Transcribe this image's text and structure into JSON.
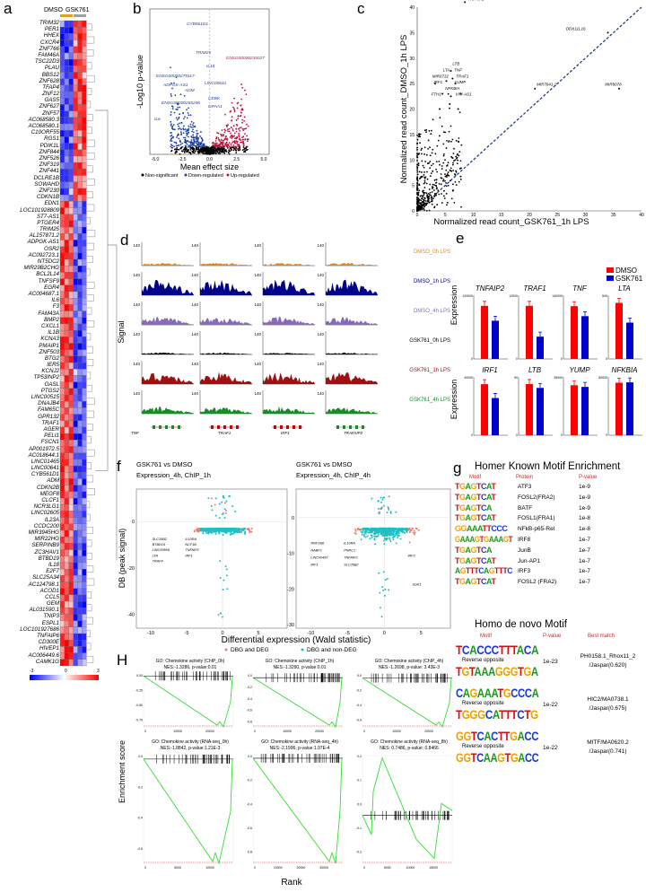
{
  "panel_labels": {
    "a": "a",
    "b": "b",
    "c": "c",
    "d": "d",
    "e": "e",
    "f": "f",
    "g": "g",
    "h": "H"
  },
  "heatmap": {
    "groups": [
      "DMSO",
      "GSK761"
    ],
    "group_colors": [
      "#e0a020",
      "#a0a0a0"
    ],
    "genes_up": [
      "TRIM32",
      "PER1",
      "HHEX",
      "CXCR4",
      "ZNF766",
      "FAM46A",
      "TSC22D3",
      "PLAU",
      "BBS12",
      "ZNF628",
      "TFAP4",
      "ZNF12",
      "GAS5",
      "ZNF627",
      "ZNF57",
      "AC068580.3",
      "AC068580.1",
      "C10ORF55",
      "RGS1",
      "PDIK1L",
      "ZNF844",
      "ZNF526",
      "ZNF319",
      "ZNF441",
      "DCLRE1B",
      "SOWAHD",
      "ZNF230",
      "CDKN1B"
    ],
    "genes_down": [
      "EDN1",
      "LOC101928809",
      "ST7-AS1",
      "PTGER4",
      "TRIM25",
      "AL157871.2",
      "ADPGK-AS1",
      "OSR2",
      "AC092723.1",
      "NT5DC2",
      "MIR29B2CHG",
      "BCL2L14",
      "TNFSF9",
      "EGR4",
      "AC004687.1",
      "IL6",
      "F3",
      "FAM43A",
      "BMP2",
      "CXCL1",
      "IL1B",
      "KCNA3",
      "PMAIP1",
      "ZNF503",
      "BTG2",
      "IER5",
      "KCNJ2",
      "TP53INP2",
      "OASL",
      "PTGS2",
      "LINC00515",
      "DNAJB4",
      "FAM65C",
      "GPR132",
      "TRAF1",
      "AGER",
      "PELI1",
      "FSCN1",
      "AP001972.5",
      "AC018644.1",
      "LINC01465",
      "LINC00641",
      "CYB561D1",
      "ADM",
      "CDKN2B",
      "MEGF8",
      "CLCF1",
      "NCR3LG1",
      "LINC02605",
      "IL23A",
      "CCDC200",
      "MIR3945HG",
      "MIR22HG",
      "SERPINB9",
      "ZC3HAV1",
      "BTBD19",
      "IL18",
      "E2F7",
      "SLC25A34",
      "AC124798.1",
      "ACOD1",
      "CCL5",
      "GEM",
      "AL031590.1",
      "TNIP3",
      "ESPL1",
      "LOC101927686",
      "TNFAIP6",
      "CD300E",
      "HIVEP1",
      "AC006449.6",
      "CAMK1G"
    ],
    "scale": {
      "min": "-3",
      "mid": "0",
      "max": "3",
      "colors": [
        "#0000ff",
        "#ffffff",
        "#ff0000"
      ]
    }
  },
  "volcano": {
    "ylabel": "-Log10 p-value",
    "xlabel": "Mean effect size",
    "xticks": [
      "-5.0",
      "-2.5",
      "0.0",
      "2.5",
      "5.0"
    ],
    "legend": [
      {
        "label": "Non-significant",
        "color": "#000000"
      },
      {
        "label": "Down-regulated",
        "color": "#1f3f9f"
      },
      {
        "label": "Up-regulated",
        "color": "#c0143c"
      }
    ],
    "labels_down": [
      "CYB561D1",
      "TRIM25",
      "IL18",
      "ENSG00000279117-",
      "ADPGK-AS1",
      "ADM",
      "LINC00641",
      "ENSG00000265206",
      "CEBK",
      "GPAA1",
      "IL6"
    ],
    "labels_up": [
      "ENSG00000235027"
    ]
  },
  "scatter_c": {
    "ylabel": "Normalized read count_DMSO_1h LPS",
    "xlabel": "Normalized read count_GSK761_1h LPS",
    "xticks": [
      "0",
      "5",
      "10",
      "15",
      "20",
      "25",
      "30",
      "35",
      "40"
    ],
    "yticks": [
      "0",
      "5",
      "10",
      "15",
      "20",
      "25",
      "30",
      "35",
      "40"
    ],
    "labels": [
      "TNFAIP2",
      "DDX11L16",
      "LTB",
      "TNF",
      "LTA",
      "MIR6732",
      "TRAF1",
      "IRF1",
      "YUMP",
      "NFKBIA",
      "FTH1",
      "VIM-AS1",
      "MIR7641-2",
      "MIR8078"
    ]
  },
  "tracks": {
    "ylabel": "Signal",
    "scale": "140",
    "rows": [
      {
        "label": "DMSO_0h LPS",
        "color": "#e08a1e"
      },
      {
        "label": "DMSO_1h LPS",
        "color": "#00008b"
      },
      {
        "label": "DMSO_4h LPS",
        "color": "#8a6ab8"
      },
      {
        "label": "GSK761_0h LPS",
        "color": "#000000"
      },
      {
        "label": "GSK761_1h LPS",
        "color": "#a01010"
      },
      {
        "label": "GSK761_4h LPS",
        "color": "#1a8a2a"
      }
    ],
    "genes": [
      "TNF",
      "TRAF1",
      "IRF1",
      "TRAFAIP2"
    ]
  },
  "bars": {
    "ylabel": "Expression",
    "legend": [
      {
        "label": "DMSO",
        "color": "#ff0000"
      },
      {
        "label": "GSK761",
        "color": "#0000cc"
      }
    ],
    "genes": [
      {
        "name": "TNFAIP2",
        "max": "120000",
        "dmso": 100000,
        "gsk": 72000,
        "ymax": 120000
      },
      {
        "name": "TRAF1",
        "max": "12000",
        "dmso": 10000,
        "gsk": 4200,
        "ymax": 12000
      },
      {
        "name": "TNF",
        "max": "140000",
        "dmso": 116000,
        "gsk": 94000,
        "ymax": 140000
      },
      {
        "name": "LTA",
        "max": "500",
        "dmso": 440,
        "gsk": 285,
        "ymax": 500
      },
      {
        "name": "IRF1",
        "max": "40000",
        "dmso": 35000,
        "gsk": 25500,
        "ymax": 40000
      },
      {
        "name": "LTB",
        "max": "90",
        "dmso": 79,
        "gsk": 73,
        "ymax": 90
      },
      {
        "name": "YUMP",
        "max": "35000",
        "dmso": 30000,
        "gsk": 29000,
        "ymax": 35000
      },
      {
        "name": "NFKBIA",
        "max": "80000",
        "dmso": 72000,
        "gsk": 72500,
        "ymax": 80000
      }
    ]
  },
  "diffbind": {
    "ylabel": "DB (peak signal)",
    "xlabel": "Differential expression (Wald statistic)",
    "plots": [
      {
        "title1": "GSK761 vs DMSO",
        "title2": "Expression_4h, ChIP_1h",
        "yticks": [
          "0",
          "-20",
          "-40"
        ],
        "xticks": [
          "-10",
          "-5",
          "0",
          "5"
        ],
        "labels": [
          "SLC35B2",
          "IL10RA",
          "BTBD19",
          "NCF1B",
          "LINC00869",
          "TNFAIP2",
          "LTA",
          "IRF1",
          "TRAF4"
        ]
      },
      {
        "title1": "GSK761 vs DMSO",
        "title2": "Expression_4h, ChIP_4h",
        "yticks": [
          "0",
          "-10",
          "-20",
          "-30"
        ],
        "xticks": [
          "-10",
          "-5",
          "0",
          "5"
        ],
        "labels": [
          "RNF19B",
          "IL10RA",
          "NABP1",
          "PNRC1",
          "LINC00487",
          "TNFAIP2",
          "IRF1",
          "SLC35B2",
          "IRF2",
          "SGK1"
        ]
      }
    ],
    "legend": [
      {
        "label": "DBG and DEG",
        "color": "#f07b6e"
      },
      {
        "label": "DBG and non-DEG",
        "color": "#1fbfc4"
      }
    ]
  },
  "motifs": {
    "known_title": "Homer Known Motif Enrichment",
    "known_headers": [
      "Motif",
      "Protein",
      "P-value"
    ],
    "known": [
      {
        "seq": "TGAGTCAT",
        "protein": "ATF3",
        "p": "1e-9"
      },
      {
        "seq": "TGAGTCAT",
        "protein": "FOSL2(FRA2)",
        "p": "1e-9"
      },
      {
        "seq": "TGAGTCA",
        "protein": "BATF",
        "p": "1e-9"
      },
      {
        "seq": "TGAGTCAT",
        "protein": "FOSL1(FRA1)",
        "p": "1e-8"
      },
      {
        "seq": "GGAAATTCCC",
        "protein": "NFkB-p65-Rel",
        "p": "1e-8"
      },
      {
        "seq": "GAAAGTGAAAGT",
        "protein": "IRF8",
        "p": "1e-7"
      },
      {
        "seq": "TGAGTCA",
        "protein": "JunB",
        "p": "1e-7"
      },
      {
        "seq": "TGAGTCAT",
        "protein": "Jun-AP1",
        "p": "1e-7"
      },
      {
        "seq": "AGTTTCAGTTTC",
        "protein": "IRF3",
        "p": "1e-7"
      },
      {
        "seq": "TGAGTCAT",
        "protein": "FOSL2 (FRA2)",
        "p": "1e-7"
      }
    ],
    "denovo_title": "Homo de novo Motif",
    "denovo_headers": [
      "Motif",
      "P-value",
      "Best match"
    ],
    "reverse_label": "Reverse opposite",
    "denovo": [
      {
        "seq": "TCACCCTTTACA",
        "rev": "TGTAAAGGGTGA",
        "p": "1e-23",
        "match1": "PH0158.1_Rhox11_2",
        "match2": "/Jaspar(0.620)"
      },
      {
        "seq": "CAGAAATGCCCA",
        "rev": "TGGGCATTTCTG",
        "p": "1e-22",
        "match1": "HIC2/MA0738.1",
        "match2": "/Jaspar(0.675)"
      },
      {
        "seq": "GGTCACTTGACC",
        "rev": "GGTCAAGTGACC",
        "p": "1e-22",
        "match1": "MITF/MA0620.2",
        "match2": "/Jaspar(0.741)"
      }
    ]
  },
  "gsea": {
    "ylabel": "Enrichment score",
    "xlabel": "Rank",
    "plots": [
      {
        "title": "GO: Chemokine activity (ChIP_0h)",
        "stats": "NES:-1.3286, p-value:0.01",
        "yticks": [
          "0.00",
          "-0.25",
          "-0.50",
          "-0.75"
        ],
        "xticks": [
          "0",
          "10000",
          "20000"
        ],
        "min": -0.9,
        "max": 0.02,
        "minpos": 0.85
      },
      {
        "title": "GO: Chemokine activity (ChIP_1h)",
        "stats": "NES:-1.3290, p-value:0.01",
        "yticks": [
          "0.0",
          "-0.2",
          "-0.4",
          "-0.6",
          "-0.8"
        ],
        "xticks": [
          "0",
          "10000",
          "20000"
        ],
        "min": -0.85,
        "max": 0.05,
        "minpos": 0.88
      },
      {
        "title": "GO: Chemokine activity (ChIP_4h)",
        "stats": "NES:-1.2698, p-value: 3.43E-3",
        "yticks": [
          "0.0",
          "-0.2",
          "-0.4",
          "-0.6"
        ],
        "xticks": [
          "0",
          "10000",
          "20000"
        ],
        "min": -0.75,
        "max": 0.05,
        "minpos": 0.85
      },
      {
        "title": "GO: Chemokine activity (RNA-seq_0h)",
        "stats": "NES:-1.8842, p-value:1.21E-3",
        "yticks": [
          "0.0",
          "-0.2",
          "-0.4",
          "-0.6"
        ],
        "xticks": [
          "0",
          "5000",
          "10000"
        ],
        "min": -0.6,
        "max": 0.02,
        "minpos": 0.8
      },
      {
        "title": "GO: Chemokine activity (RNA-seq_4h)",
        "stats": "NES:-2.1996, p-value:1.97E-4",
        "yticks": [
          "0.0",
          "-0.2",
          "-0.4",
          "-0.6",
          "-0.8"
        ],
        "xticks": [
          "0",
          "10000",
          "20000",
          "30000"
        ],
        "min": -0.8,
        "max": 0.02,
        "minpos": 0.88
      },
      {
        "title": "GO: Chemokine activity (RNA-seq_8h)",
        "stats": "NES: 0.7486, p-value: 0.8466",
        "yticks": [
          "0.2",
          "0.1",
          "0.0",
          "-0.1",
          "-0.2"
        ],
        "xticks": [
          "0",
          "5000",
          "10000",
          "15000"
        ],
        "min": -0.2,
        "max": 0.25,
        "minpos": 0.85
      }
    ]
  }
}
